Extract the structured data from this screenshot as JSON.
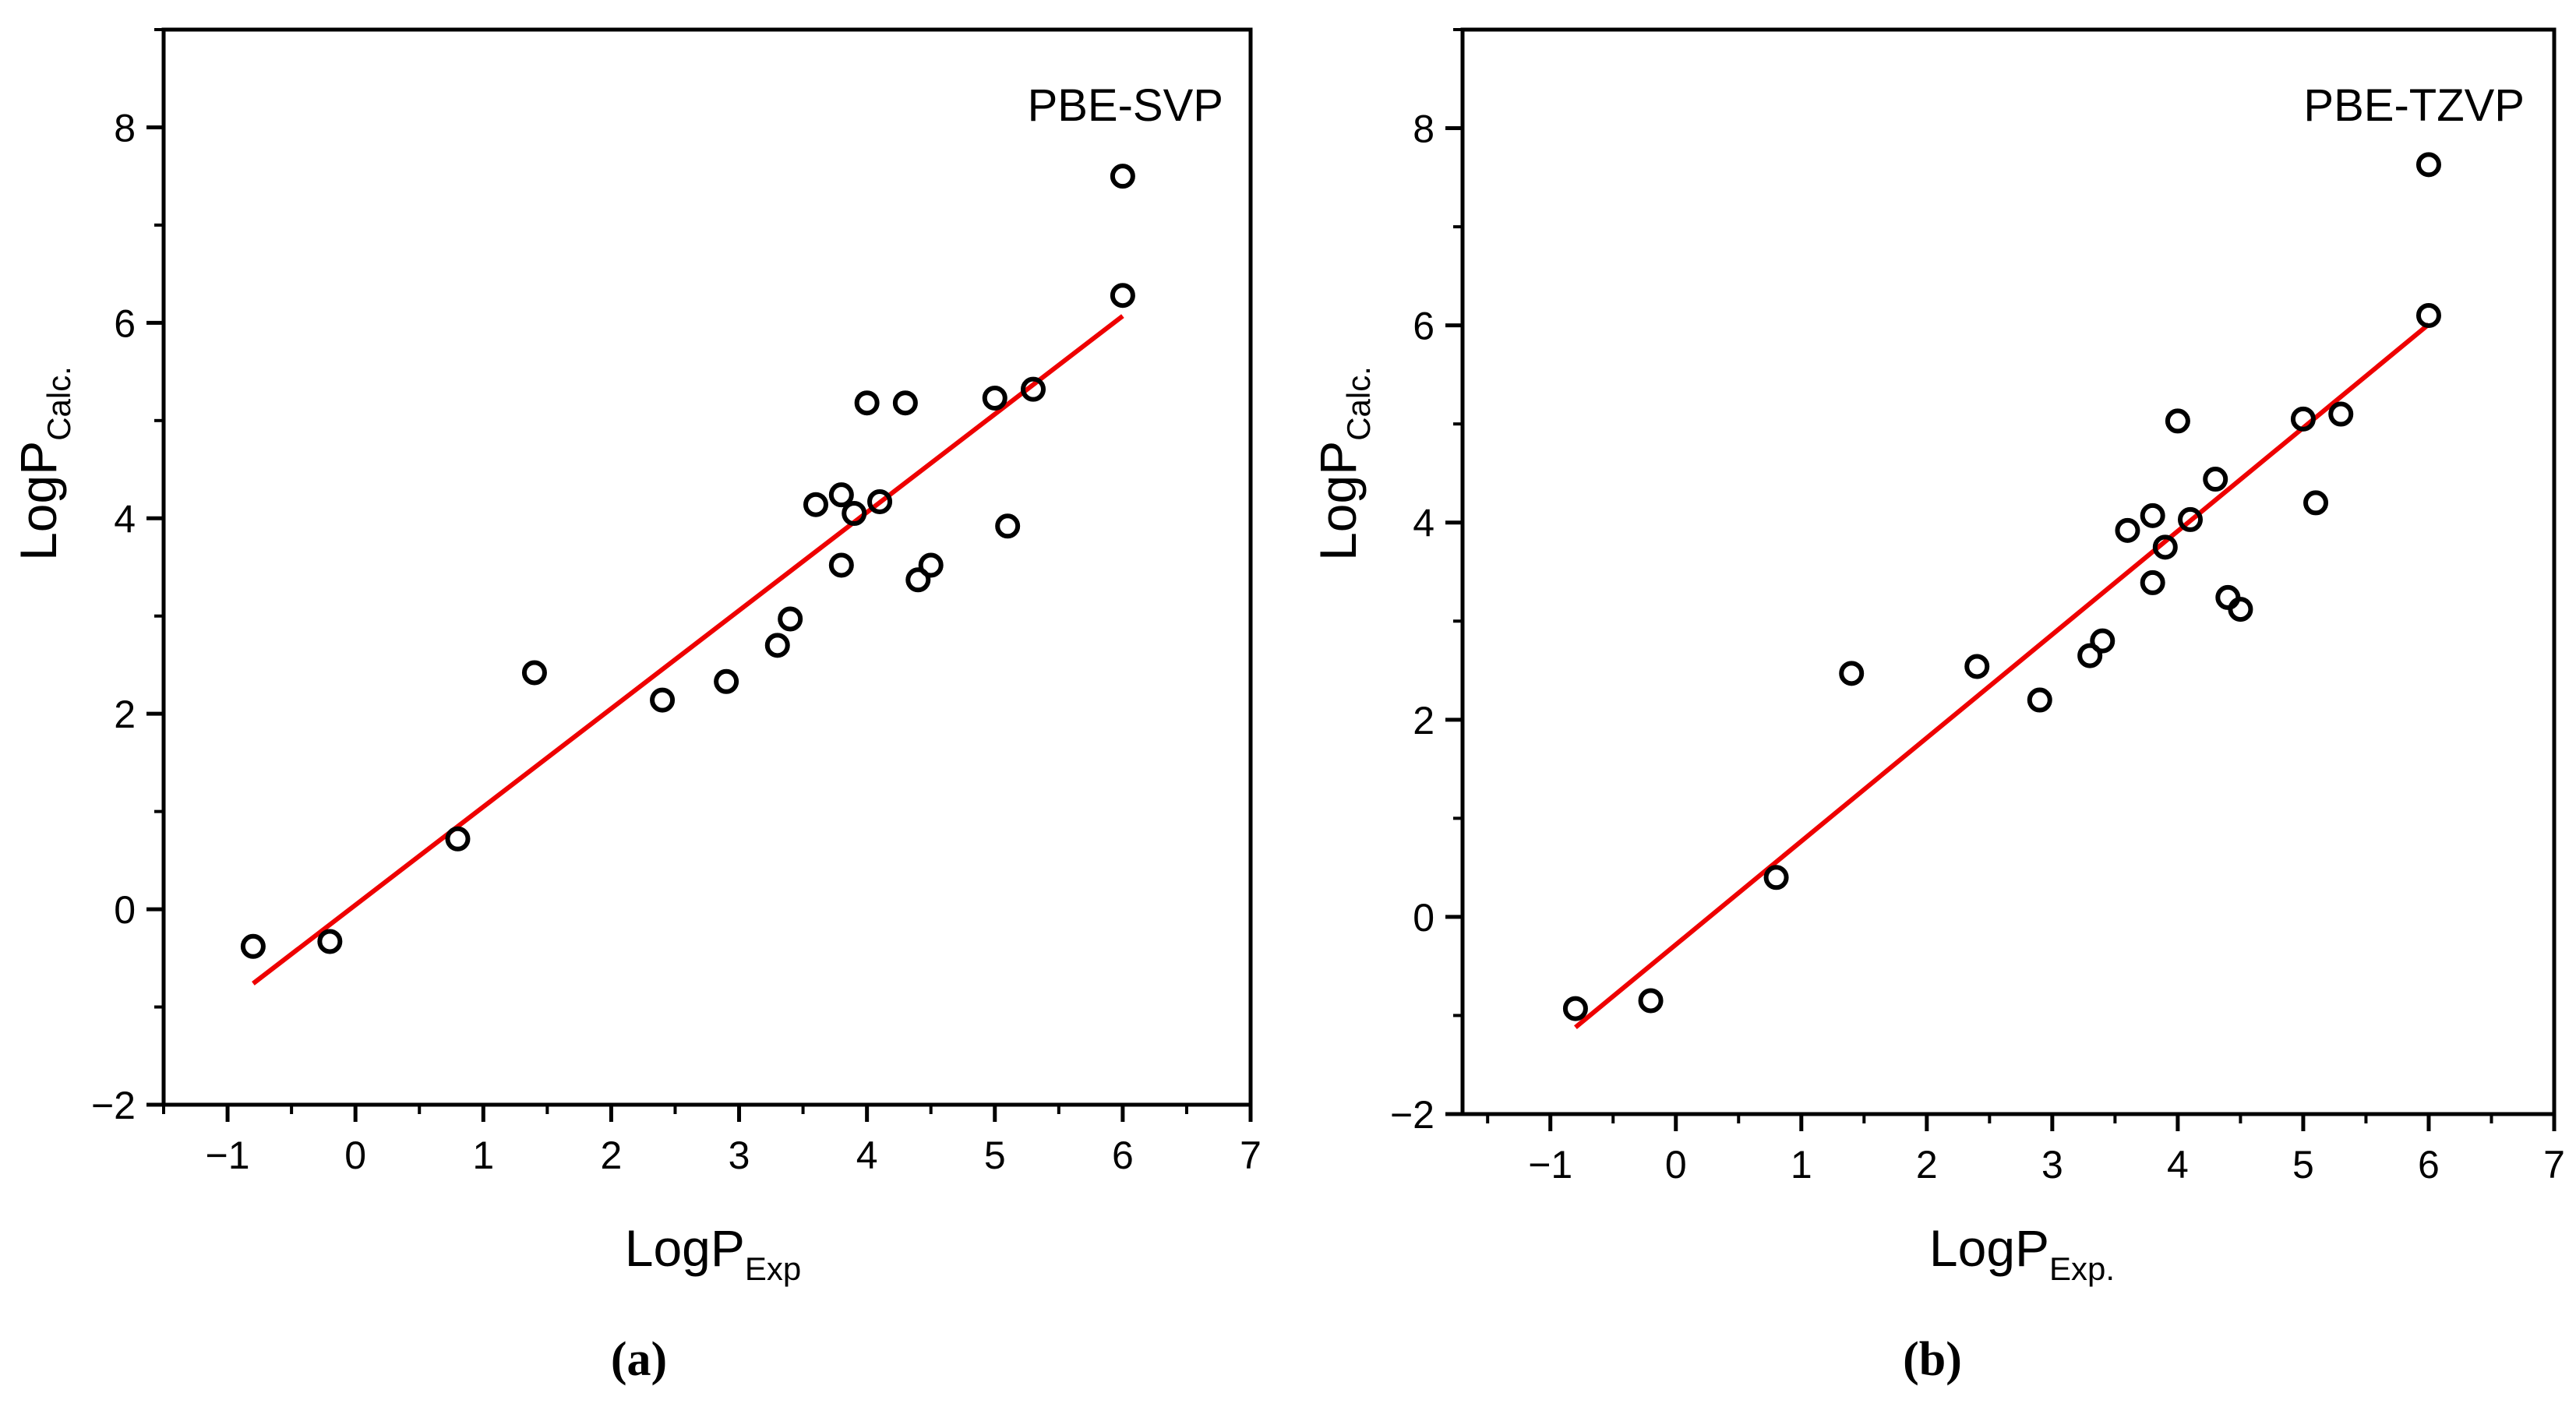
{
  "chart_data": [
    {
      "type": "scatter",
      "panel": "(a)",
      "title": "PBE-SVP",
      "xlabel": "LogP",
      "xlabel_sub": "Exp",
      "ylabel": "LogP",
      "ylabel_sub": "Calc.",
      "xlim": [
        -1.5,
        7
      ],
      "ylim": [
        -2,
        9
      ],
      "xticks": [
        -1,
        0,
        1,
        2,
        3,
        4,
        5,
        6,
        7
      ],
      "yticks": [
        -2,
        0,
        2,
        4,
        6,
        8
      ],
      "xtick_labels": [
        "−1",
        "0",
        "1",
        "2",
        "3",
        "4",
        "5",
        "6",
        "7"
      ],
      "ytick_labels": [
        "−2",
        "0",
        "2",
        "4",
        "6",
        "8"
      ],
      "legend": "top-right",
      "series": [
        {
          "name": "data",
          "x": [
            -0.8,
            -0.2,
            0.8,
            1.4,
            2.4,
            2.9,
            3.3,
            3.4,
            3.6,
            3.8,
            3.8,
            3.9,
            4.0,
            4.1,
            4.3,
            4.4,
            4.5,
            5.0,
            5.1,
            5.3,
            6.0,
            6.0
          ],
          "y": [
            -0.38,
            -0.33,
            0.72,
            2.42,
            2.14,
            2.33,
            2.7,
            2.97,
            4.14,
            3.52,
            4.24,
            4.05,
            5.18,
            4.17,
            5.18,
            3.37,
            3.52,
            5.23,
            3.92,
            5.32,
            7.5,
            6.28
          ],
          "color": "#000000"
        },
        {
          "name": "fit",
          "x": [
            -0.8,
            6.0
          ],
          "y": [
            -0.76,
            6.07
          ],
          "color": "#ee0000"
        }
      ]
    },
    {
      "type": "scatter",
      "panel": "(b)",
      "title": "PBE-TZVP",
      "xlabel": "LogP",
      "xlabel_sub": "Exp.",
      "ylabel": "LogP",
      "ylabel_sub": "Calc.",
      "xlim": [
        -1.7,
        7
      ],
      "ylim": [
        -2,
        9
      ],
      "xticks": [
        -1,
        0,
        1,
        2,
        3,
        4,
        5,
        6,
        7
      ],
      "yticks": [
        -2,
        0,
        2,
        4,
        6,
        8
      ],
      "xtick_labels": [
        "−1",
        "0",
        "1",
        "2",
        "3",
        "4",
        "5",
        "6",
        "7"
      ],
      "ytick_labels": [
        "−2",
        "0",
        "2",
        "4",
        "6",
        "8"
      ],
      "legend": "top-right",
      "series": [
        {
          "name": "data",
          "x": [
            -0.8,
            -0.2,
            0.8,
            1.4,
            2.4,
            2.9,
            3.3,
            3.4,
            3.6,
            3.8,
            3.8,
            3.9,
            4.0,
            4.1,
            4.3,
            4.4,
            4.5,
            5.0,
            5.1,
            5.3,
            6.0,
            6.0
          ],
          "y": [
            -0.93,
            -0.85,
            0.4,
            2.47,
            2.54,
            2.2,
            2.65,
            2.8,
            3.92,
            3.39,
            4.07,
            3.75,
            5.03,
            4.03,
            4.44,
            3.24,
            3.12,
            5.05,
            4.2,
            5.1,
            7.63,
            6.1
          ],
          "color": "#000000"
        },
        {
          "name": "fit",
          "x": [
            -0.8,
            6.0
          ],
          "y": [
            -1.12,
            6.01
          ],
          "color": "#ee0000"
        }
      ]
    }
  ]
}
